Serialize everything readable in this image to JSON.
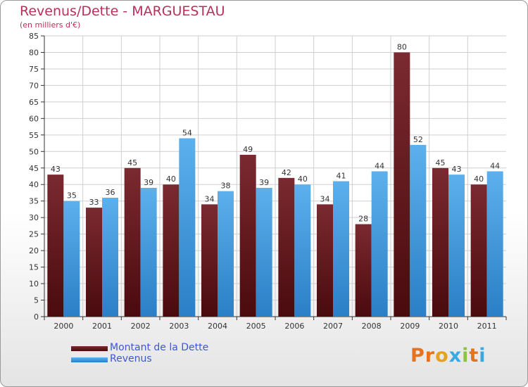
{
  "colors": {
    "title": "#b8305a",
    "debt_top": "#7a2a30",
    "debt_bottom": "#4a0a0e",
    "revenue_top": "#5cb0ec",
    "revenue_bottom": "#2a7fc6",
    "legend_text": "#3f55d6",
    "grid": "#cfcfcf"
  },
  "logo": {
    "text": "Proxiti",
    "letter_colors": [
      "#e6721d",
      "#e6721d",
      "#e6a21d",
      "#3aa9e0",
      "#8bc43f",
      "#e6721d",
      "#3aa9e0"
    ]
  },
  "chart_data": {
    "type": "bar",
    "title": "Revenus/Dette - MARGUESTAU",
    "subtitle": "(en milliers d'€)",
    "xlabel": "",
    "ylabel": "",
    "ylim": [
      0,
      85
    ],
    "ytick_step": 5,
    "grid": true,
    "legend_position": "bottom-left",
    "categories": [
      "2000",
      "2001",
      "2002",
      "2003",
      "2004",
      "2005",
      "2006",
      "2007",
      "2008",
      "2009",
      "2010",
      "2011"
    ],
    "series": [
      {
        "name": "Montant de la Dette",
        "values": [
          43,
          33,
          45,
          40,
          34,
          49,
          42,
          34,
          28,
          80,
          45,
          40
        ]
      },
      {
        "name": "Revenus",
        "values": [
          35,
          36,
          39,
          54,
          38,
          39,
          40,
          41,
          44,
          52,
          43,
          44
        ]
      }
    ]
  }
}
